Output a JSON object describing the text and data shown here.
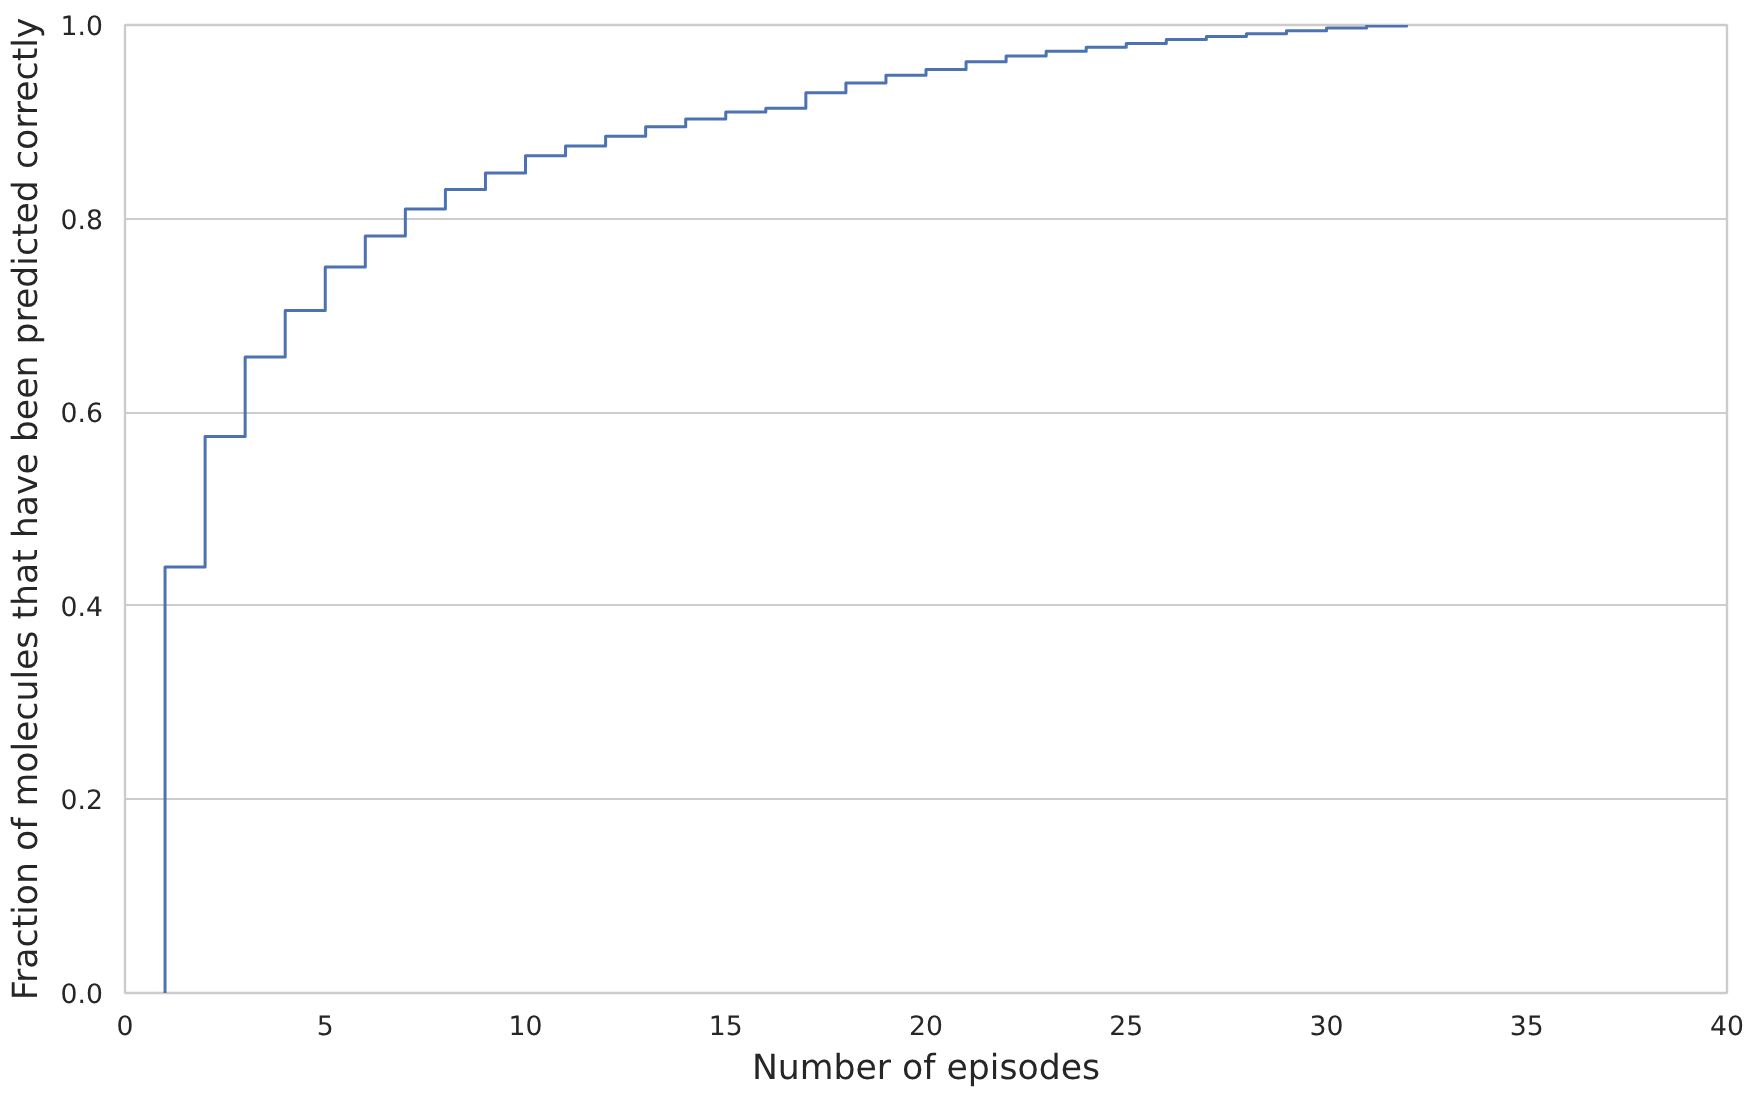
{
  "chart_data": {
    "type": "step",
    "xlabel": "Number of episodes",
    "ylabel": "Fraction of molecules that have been predicted correctly",
    "x": [
      1,
      1,
      2,
      3,
      4,
      5,
      6,
      7,
      8,
      9,
      10,
      11,
      12,
      13,
      14,
      15,
      16,
      17,
      18,
      19,
      20,
      21,
      22,
      23,
      24,
      25,
      26,
      27,
      28,
      29,
      30,
      31,
      32
    ],
    "series": [
      {
        "color": "#4c72b0",
        "values": [
          0,
          0.44,
          0.575,
          0.657,
          0.705,
          0.75,
          0.782,
          0.81,
          0.83,
          0.847,
          0.865,
          0.875,
          0.885,
          0.895,
          0.903,
          0.91,
          0.914,
          0.93,
          0.94,
          0.948,
          0.954,
          0.962,
          0.968,
          0.973,
          0.977,
          0.981,
          0.985,
          0.988,
          0.991,
          0.994,
          0.997,
          0.999,
          1.0
        ]
      }
    ],
    "xlim": [
      0,
      40
    ],
    "xticks": [
      0,
      5,
      10,
      15,
      20,
      25,
      30,
      35,
      40
    ],
    "ylim": [
      0,
      1.0
    ],
    "yticks": [
      {
        "value": 0,
        "label": "0.0"
      },
      {
        "value": 0.2,
        "label": "0.2"
      },
      {
        "value": 0.4,
        "label": "0.4"
      },
      {
        "value": 0.6,
        "label": "0.6"
      },
      {
        "value": 0.8,
        "label": "0.8"
      },
      {
        "value": 1.0,
        "label": "1.0"
      }
    ],
    "grid": "y",
    "marker": "none",
    "line_style": "solid"
  }
}
